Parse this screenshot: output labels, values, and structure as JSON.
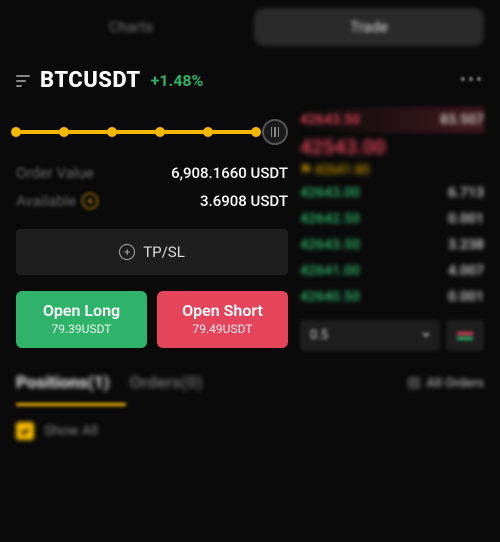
{
  "colors": {
    "accent": "#f5b800",
    "long": "#2fb36a",
    "short": "#e5455a",
    "bg": "#0a0a0a"
  },
  "topTabs": {
    "charts": "Charts",
    "trade": "Trade"
  },
  "pair": {
    "symbol": "BTCUSDT",
    "change": "+1.48%",
    "changeColor": "#2fb36a"
  },
  "leverage": {
    "stops": [
      0,
      20,
      40,
      60,
      80,
      100
    ],
    "value": 100
  },
  "stats": {
    "orderValueLabel": "Order Value",
    "orderValue": "6,908.1660 USDT",
    "availableLabel": "Available",
    "available": "3.6908 USDT"
  },
  "tpsl": {
    "label": "TP/SL"
  },
  "actions": {
    "long": {
      "title": "Open Long",
      "sub": "79.39USDT"
    },
    "short": {
      "title": "Open Short",
      "sub": "79.49USDT"
    }
  },
  "orderbook": {
    "asks": [
      {
        "price": "42643.50",
        "size": "83.507"
      }
    ],
    "lastPrice": "42543.00",
    "flag": "42641.80",
    "bids": [
      {
        "price": "42643.00",
        "size": "6.713"
      },
      {
        "price": "42642.50",
        "size": "0.001"
      },
      {
        "price": "42643.50",
        "size": "3.238"
      },
      {
        "price": "42641.00",
        "size": "4.007"
      },
      {
        "price": "42640.50",
        "size": "0.001"
      }
    ],
    "depthStep": "0.5"
  },
  "bottom": {
    "positionsLabel": "Positions(1)",
    "ordersLabel": "Orders(0)",
    "allOrders": "All Orders",
    "showAll": "Show All"
  }
}
